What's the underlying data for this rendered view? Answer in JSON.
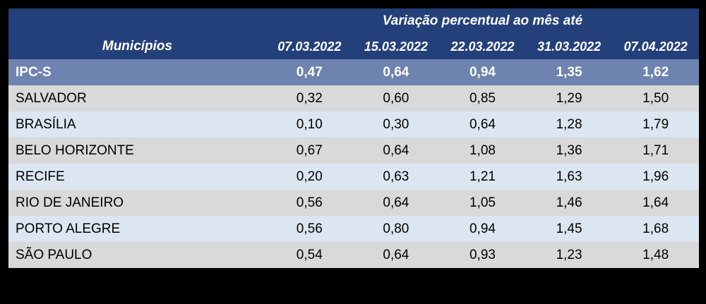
{
  "table": {
    "title": "Variação percentual ao mês até",
    "municipios_header": "Municípios",
    "date_headers": [
      "07.03.2022",
      "15.03.2022",
      "22.03.2022",
      "31.03.2022",
      "07.04.2022"
    ],
    "rows": [
      {
        "name": "IPC-S",
        "values": [
          "0,47",
          "0,64",
          "0,94",
          "1,35",
          "1,62"
        ]
      },
      {
        "name": "SALVADOR",
        "values": [
          "0,32",
          "0,60",
          "0,85",
          "1,29",
          "1,50"
        ]
      },
      {
        "name": "BRASÍLIA",
        "values": [
          "0,10",
          "0,30",
          "0,64",
          "1,28",
          "1,79"
        ]
      },
      {
        "name": "BELO HORIZONTE",
        "values": [
          "0,67",
          "0,64",
          "1,08",
          "1,36",
          "1,71"
        ]
      },
      {
        "name": "RECIFE",
        "values": [
          "0,20",
          "0,63",
          "1,21",
          "1,63",
          "1,96"
        ]
      },
      {
        "name": "RIO DE JANEIRO",
        "values": [
          "0,56",
          "0,64",
          "1,05",
          "1,46",
          "1,64"
        ]
      },
      {
        "name": "PORTO ALEGRE",
        "values": [
          "0,56",
          "0,80",
          "0,94",
          "1,45",
          "1,68"
        ]
      },
      {
        "name": "SÃO PAULO",
        "values": [
          "0,54",
          "0,64",
          "0,93",
          "1,23",
          "1,48"
        ]
      }
    ],
    "colors": {
      "frame_bg": "#000000",
      "header_bg": "#24407A",
      "header_text": "#FFFFFF",
      "ipcs_row_bg": "#6E83AF",
      "row_gray": "#D9D9D9",
      "row_light_blue": "#DCE6F1",
      "data_text": "#000000"
    }
  },
  "chart_data": {
    "type": "table",
    "title": "Variação percentual ao mês até",
    "row_header": "Municípios",
    "columns": [
      "07.03.2022",
      "15.03.2022",
      "22.03.2022",
      "31.03.2022",
      "07.04.2022"
    ],
    "rows": [
      {
        "name": "IPC-S",
        "values": [
          0.47,
          0.64,
          0.94,
          1.35,
          1.62
        ]
      },
      {
        "name": "SALVADOR",
        "values": [
          0.32,
          0.6,
          0.85,
          1.29,
          1.5
        ]
      },
      {
        "name": "BRASÍLIA",
        "values": [
          0.1,
          0.3,
          0.64,
          1.28,
          1.79
        ]
      },
      {
        "name": "BELO HORIZONTE",
        "values": [
          0.67,
          0.64,
          1.08,
          1.36,
          1.71
        ]
      },
      {
        "name": "RECIFE",
        "values": [
          0.2,
          0.63,
          1.21,
          1.63,
          1.96
        ]
      },
      {
        "name": "RIO DE JANEIRO",
        "values": [
          0.56,
          0.64,
          1.05,
          1.46,
          1.64
        ]
      },
      {
        "name": "PORTO ALEGRE",
        "values": [
          0.56,
          0.8,
          0.94,
          1.45,
          1.68
        ]
      },
      {
        "name": "SÃO PAULO",
        "values": [
          0.54,
          0.64,
          0.93,
          1.23,
          1.48
        ]
      }
    ],
    "notes": "IPC-S weekly consumer price index variation table; decimal comma formatting in display"
  }
}
